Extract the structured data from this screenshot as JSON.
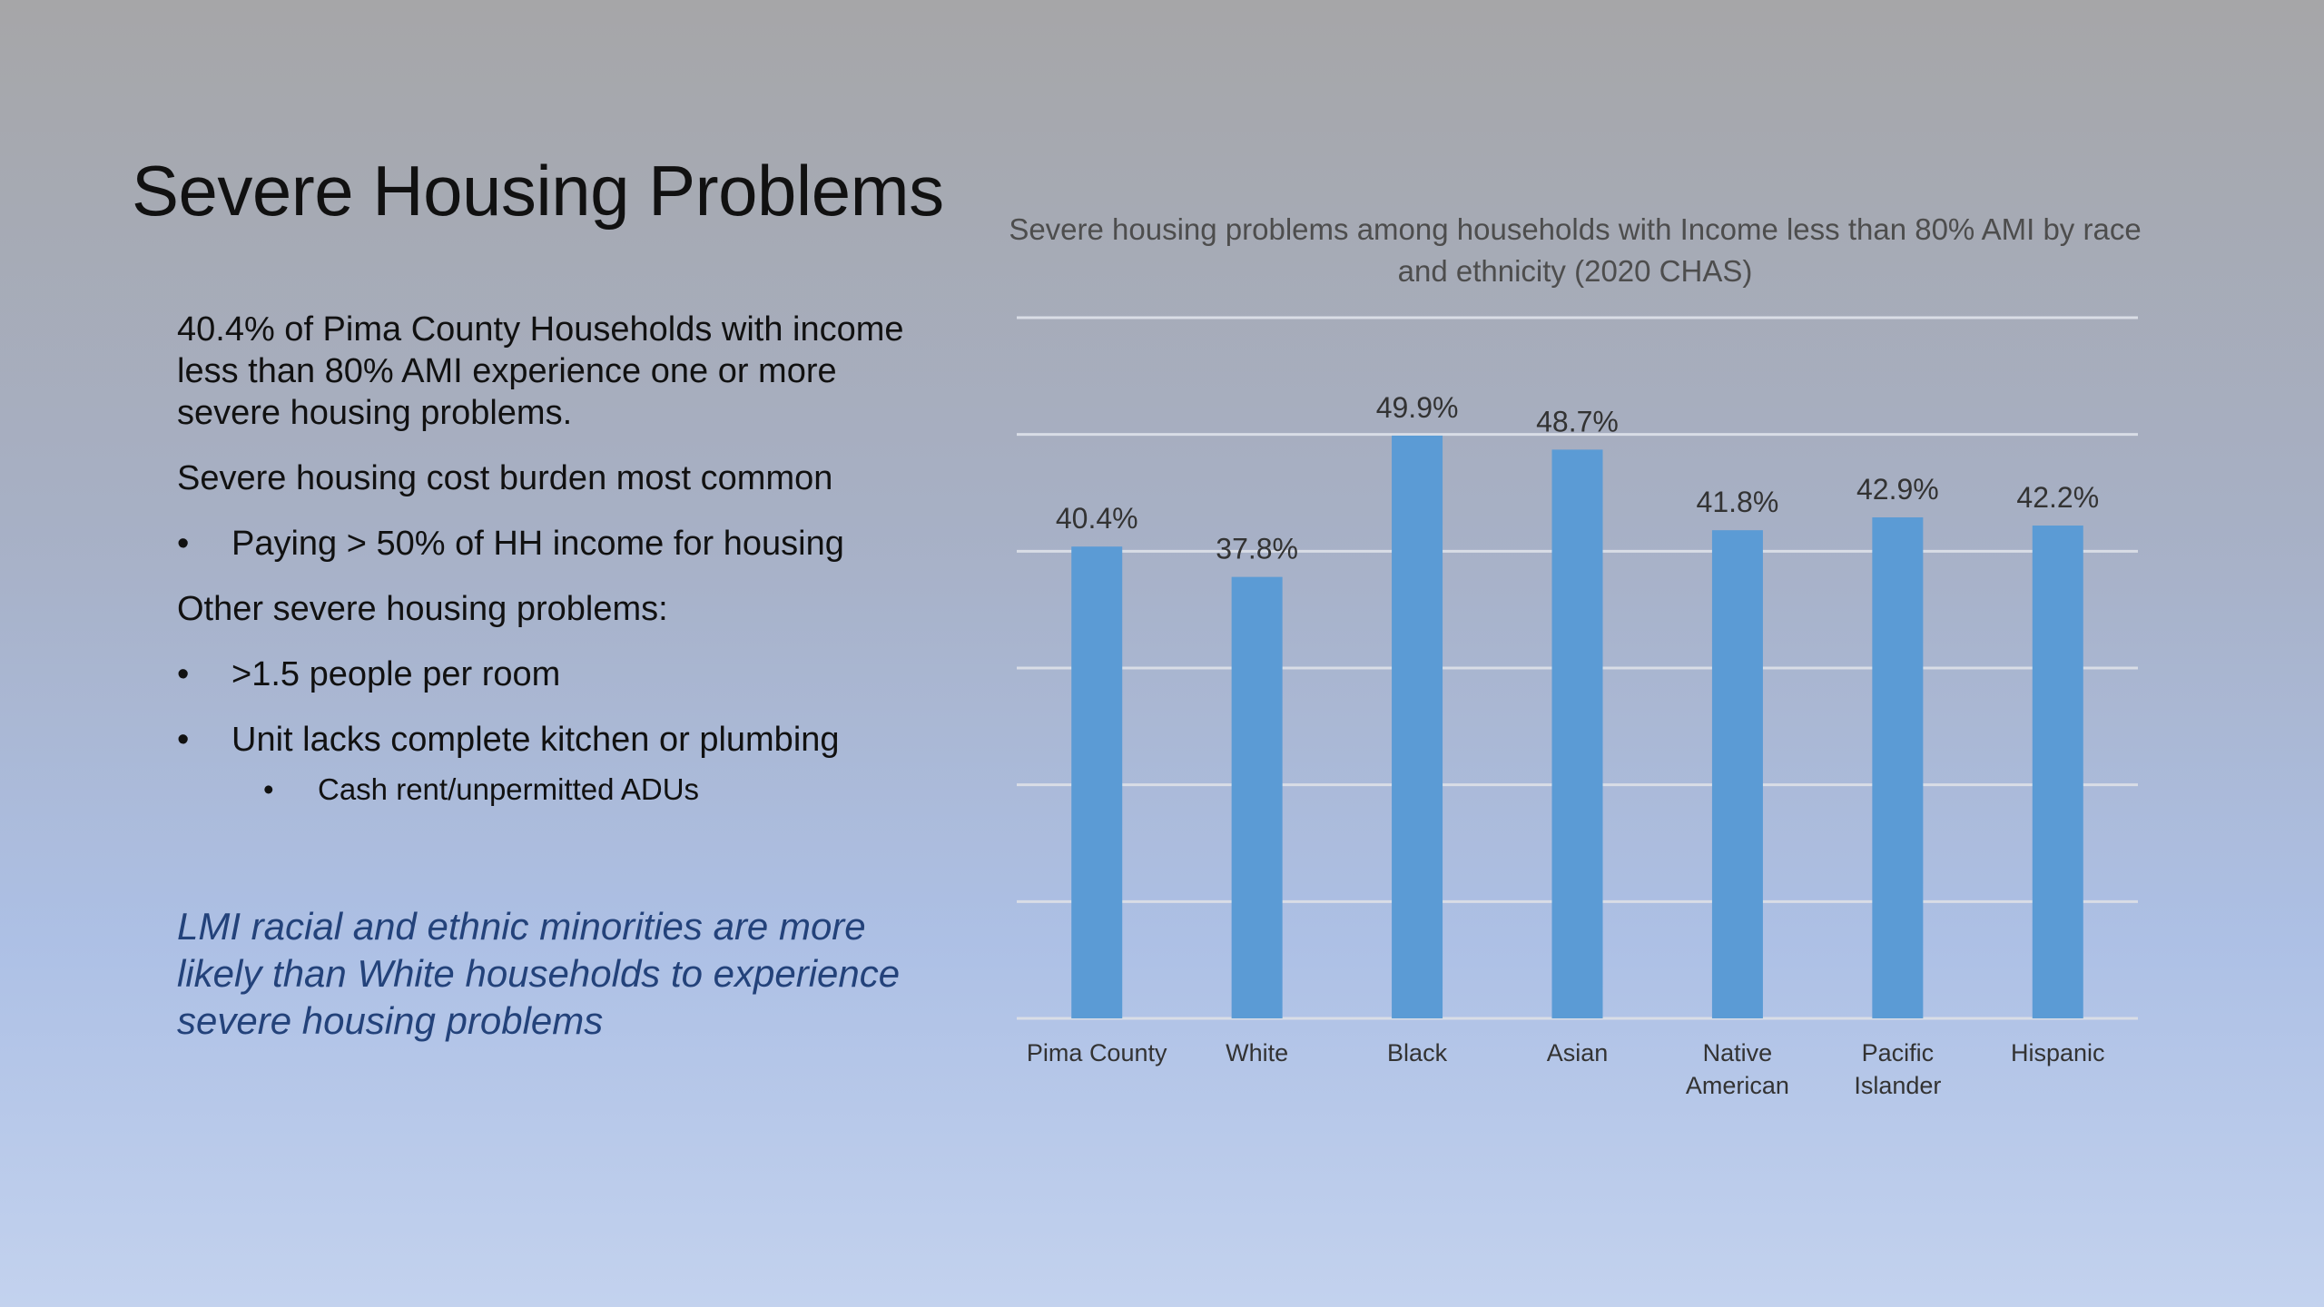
{
  "slide": {
    "title": "Severe Housing Problems",
    "intro": "40.4% of Pima County Households with income less than 80% AMI experience one or more severe housing problems.",
    "cost_burden_heading": "Severe housing cost burden most common",
    "cost_burden_bullet": "Paying > 50% of HH income for housing",
    "other_heading": "Other severe housing problems:",
    "other_bullet_1": ">1.5 people per room",
    "other_bullet_2": "Unit lacks complete kitchen or plumbing",
    "other_subbullet": "Cash rent/unpermitted ADUs",
    "bullet_glyph": "•",
    "note": "LMI racial and ethnic minorities are more likely than White households to experience severe housing problems"
  },
  "chart_data": {
    "type": "bar",
    "title": "Severe housing problems among households with Income less than 80% AMI by race and ethnicity (2020 CHAS)",
    "categories": [
      [
        "Pima County"
      ],
      [
        "White"
      ],
      [
        "Black"
      ],
      [
        "Asian"
      ],
      [
        "Native",
        "American"
      ],
      [
        "Pacific",
        "Islander"
      ],
      [
        "Hispanic"
      ]
    ],
    "values": [
      40.4,
      37.8,
      49.9,
      48.7,
      41.8,
      42.9,
      42.2
    ],
    "data_labels": [
      "40.4%",
      "37.8%",
      "49.9%",
      "48.7%",
      "41.8%",
      "42.9%",
      "42.2%"
    ],
    "ylim": [
      0,
      60
    ],
    "gridlines": [
      0,
      10,
      20,
      30,
      40,
      50,
      60
    ],
    "bar_color": "#5b9bd5",
    "grid_color": "#d9dde6",
    "xlabel": "",
    "ylabel": ""
  }
}
